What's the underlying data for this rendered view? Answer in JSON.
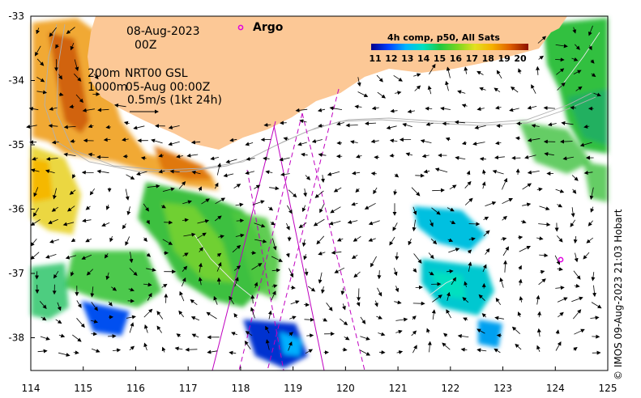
{
  "map": {
    "date": "08-Aug-2023",
    "time": "00Z",
    "argo_label": "Argo",
    "contour_200": "200m",
    "contour_1000": "1000m",
    "current_source": "NRT00 GSL",
    "current_date": "05-Aug 00:00Z",
    "scale_arrow_label": "0.5m/s (1kt 24h)",
    "colorbar_title": "4h comp, p50, All Sats",
    "colorbar_ticks": [
      "11",
      "12",
      "13",
      "14",
      "15",
      "16",
      "17",
      "18",
      "19",
      "20"
    ],
    "lon_ticks": [
      "114",
      "115",
      "116",
      "117",
      "118",
      "119",
      "120",
      "121",
      "122",
      "123",
      "124",
      "125"
    ],
    "lat_ticks": [
      "-33",
      "-34",
      "-35",
      "-36",
      "-37",
      "-38"
    ],
    "credit": "© IMOS 09-Aug-2023 21:03 Hobart",
    "colors": {
      "land": "#fcc896",
      "argo": "#e000e0",
      "track": "#c000c0"
    }
  }
}
